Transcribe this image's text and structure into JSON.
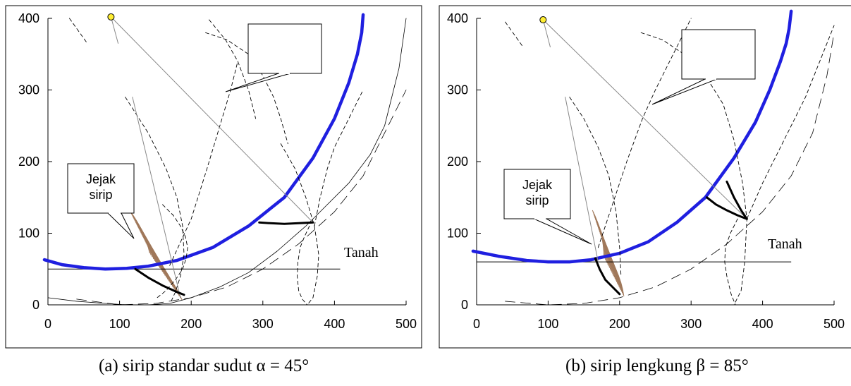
{
  "chart_data": [
    {
      "type": "line",
      "xlim": [
        0,
        500
      ],
      "ylim": [
        0,
        400
      ],
      "xticks": [
        0,
        100,
        200,
        300,
        400,
        500
      ],
      "yticks": [
        0,
        100,
        200,
        300,
        400
      ],
      "caption": "(a) sirip standar sudut α = 45°",
      "annotations": {
        "callout_fin": [
          "Jejak",
          "sirip"
        ],
        "callout_empty": "",
        "ground_label": "Tanah"
      },
      "light_point": [
        88,
        402
      ],
      "ground_line": {
        "x": [
          0,
          408
        ],
        "y": 50
      },
      "series": [
        {
          "kind": "blue-thick",
          "x": [
            -5,
            20,
            50,
            80,
            110,
            140,
            180,
            230,
            280,
            330,
            370,
            400,
            420,
            432,
            438,
            440
          ],
          "y": [
            63,
            56,
            52,
            50,
            51,
            54,
            62,
            80,
            110,
            150,
            205,
            260,
            310,
            350,
            380,
            405
          ]
        },
        {
          "kind": "dash-long",
          "x": [
            40,
            100,
            150,
            200,
            250,
            300,
            350,
            400,
            440,
            480,
            500
          ],
          "y": [
            8,
            0,
            2,
            10,
            25,
            50,
            85,
            130,
            180,
            260,
            300
          ]
        },
        {
          "kind": "thin",
          "x": [
            0,
            40,
            80,
            110,
            140,
            170,
            200,
            240,
            280,
            320,
            360,
            390,
            420,
            450,
            470,
            490,
            500
          ],
          "y": [
            10,
            5,
            2,
            0,
            0,
            2,
            10,
            25,
            45,
            75,
            110,
            140,
            170,
            210,
            250,
            330,
            400
          ]
        },
        {
          "kind": "dash",
          "x": [
            160,
            175,
            185,
            192,
            195,
            193,
            188,
            178,
            165,
            150
          ],
          "y": [
            140,
            125,
            110,
            95,
            80,
            65,
            50,
            35,
            20,
            8
          ]
        },
        {
          "kind": "dash",
          "x": [
            108,
            140,
            165,
            180,
            188,
            190,
            185,
            178,
            172
          ],
          "y": [
            290,
            240,
            190,
            150,
            110,
            70,
            40,
            18,
            5
          ]
        },
        {
          "kind": "dash",
          "x": [
            170,
            200,
            222,
            240,
            255,
            265
          ],
          "y": [
            55,
            120,
            190,
            250,
            300,
            340
          ]
        },
        {
          "kind": "dash",
          "x": [
            220,
            250,
            280,
            300,
            315,
            325,
            335
          ],
          "y": [
            380,
            370,
            350,
            320,
            290,
            260,
            225
          ]
        },
        {
          "kind": "dash",
          "x": [
            325,
            345,
            360,
            372,
            378,
            376,
            370,
            362
          ],
          "y": [
            225,
            190,
            150,
            110,
            70,
            40,
            10,
            0
          ]
        },
        {
          "kind": "dash",
          "x": [
            372,
            380,
            390,
            400,
            420,
            440
          ],
          "y": [
            110,
            150,
            190,
            220,
            260,
            300
          ]
        },
        {
          "kind": "dash",
          "x": [
            365,
            358,
            352,
            349,
            348,
            350,
            355,
            362
          ],
          "y": [
            110,
            95,
            80,
            60,
            40,
            20,
            8,
            0
          ]
        },
        {
          "kind": "dash",
          "x": [
            30,
            55
          ],
          "y": [
            400,
            365
          ]
        },
        {
          "kind": "dash",
          "x": [
            225,
            248,
            265,
            280,
            290
          ],
          "y": [
            398,
            370,
            340,
            300,
            260
          ]
        },
        {
          "kind": "gray-line",
          "x": [
            88,
            370
          ],
          "y": [
            402,
            115
          ]
        },
        {
          "kind": "gray-line",
          "x": [
            88,
            98
          ],
          "y": [
            402,
            365
          ]
        },
        {
          "kind": "gray-line",
          "x": [
            118,
            185
          ],
          "y": [
            290,
            10
          ]
        },
        {
          "kind": "black-thick",
          "x": [
            122,
            140,
            160,
            180,
            190
          ],
          "y": [
            50,
            38,
            27,
            18,
            14
          ]
        },
        {
          "kind": "black-thick",
          "x": [
            295,
            310,
            330,
            350,
            370
          ],
          "y": [
            115,
            114,
            113,
            114,
            115
          ]
        }
      ]
    },
    {
      "type": "line",
      "xlim": [
        0,
        500
      ],
      "ylim": [
        0,
        400
      ],
      "xticks": [
        0,
        100,
        200,
        300,
        400,
        500
      ],
      "yticks": [
        0,
        100,
        200,
        300,
        400
      ],
      "caption": "(b) sirip lengkung β = 85°",
      "annotations": {
        "callout_fin": [
          "Jejak",
          "sirip"
        ],
        "callout_empty": "",
        "ground_label": "Tanah"
      },
      "light_point": [
        93,
        398
      ],
      "ground_line": {
        "x": [
          0,
          440
        ],
        "y": 60
      },
      "series": [
        {
          "kind": "blue-thick",
          "x": [
            -5,
            30,
            70,
            100,
            130,
            160,
            200,
            240,
            280,
            320,
            360,
            390,
            410,
            425,
            433,
            437,
            440
          ],
          "y": [
            75,
            68,
            62,
            60,
            60,
            63,
            72,
            88,
            115,
            150,
            205,
            255,
            300,
            340,
            365,
            385,
            410
          ]
        },
        {
          "kind": "dash-long",
          "x": [
            40,
            100,
            150,
            200,
            250,
            300,
            350,
            400,
            440,
            470,
            490,
            500
          ],
          "y": [
            5,
            0,
            2,
            10,
            25,
            50,
            85,
            130,
            180,
            240,
            320,
            380
          ]
        },
        {
          "kind": "dash",
          "x": [
            170,
            190,
            210,
            232,
            250,
            270,
            290,
            300
          ],
          "y": [
            80,
            140,
            200,
            260,
            300,
            340,
            380,
            400
          ]
        },
        {
          "kind": "dash",
          "x": [
            230,
            260,
            290,
            320,
            345,
            360,
            372,
            378,
            375,
            370,
            360
          ],
          "y": [
            380,
            370,
            350,
            320,
            280,
            230,
            170,
            120,
            60,
            20,
            0
          ]
        },
        {
          "kind": "dash",
          "x": [
            378,
            400,
            420,
            440,
            460,
            480,
            500
          ],
          "y": [
            120,
            170,
            210,
            250,
            290,
            340,
            390
          ]
        },
        {
          "kind": "dash",
          "x": [
            365,
            355,
            348,
            347,
            350,
            356,
            362
          ],
          "y": [
            120,
            100,
            80,
            60,
            40,
            15,
            0
          ]
        },
        {
          "kind": "dash",
          "x": [
            130,
            150,
            170,
            185,
            195,
            200,
            202
          ],
          "y": [
            290,
            260,
            220,
            180,
            130,
            80,
            40
          ]
        },
        {
          "kind": "dash",
          "x": [
            40,
            65
          ],
          "y": [
            395,
            360
          ]
        },
        {
          "kind": "gray-line",
          "x": [
            93,
            378
          ],
          "y": [
            398,
            120
          ]
        },
        {
          "kind": "gray-line",
          "x": [
            93,
            103
          ],
          "y": [
            398,
            360
          ]
        },
        {
          "kind": "gray-line",
          "x": [
            124,
            170
          ],
          "y": [
            290,
            60
          ]
        },
        {
          "kind": "black-thick",
          "x": [
            166,
            172,
            180,
            190,
            200
          ],
          "y": [
            65,
            50,
            35,
            25,
            15
          ]
        },
        {
          "kind": "black-thick",
          "x": [
            322,
            335,
            350,
            365,
            378
          ],
          "y": [
            150,
            140,
            132,
            125,
            120
          ]
        },
        {
          "kind": "black-thick",
          "x": [
            350,
            360,
            370,
            378
          ],
          "y": [
            172,
            150,
            132,
            120
          ]
        }
      ]
    }
  ]
}
